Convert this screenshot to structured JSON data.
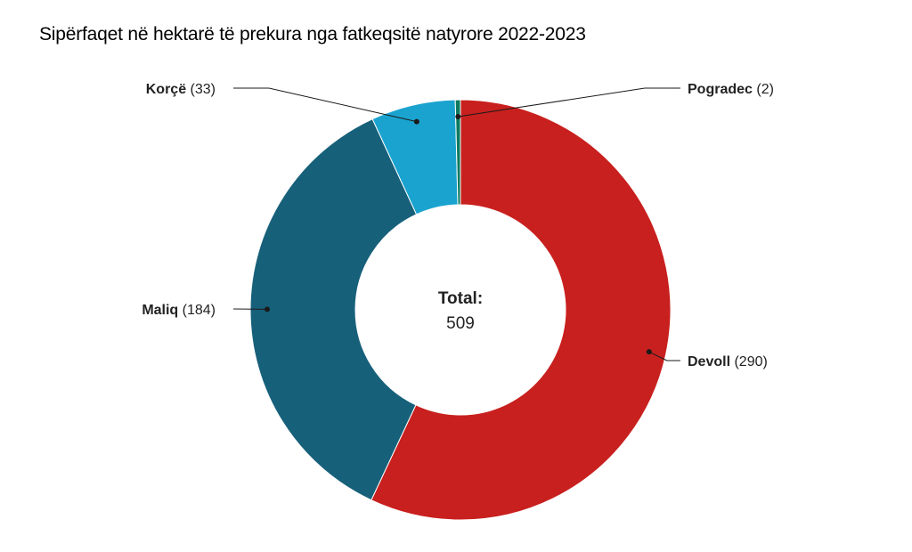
{
  "chart_data": {
    "type": "pie",
    "title": "Sipërfaqet në hektarë të prekura nga fatkeqsitë natyrore 2022-2023",
    "donut": true,
    "center_label": "Total:",
    "center_value": "509",
    "slices": [
      {
        "label": "Devoll",
        "value": 290,
        "display": "(290)",
        "color": "#c8201e"
      },
      {
        "label": "Maliq",
        "value": 184,
        "display": "(184)",
        "color": "#17607a"
      },
      {
        "label": "Korçë",
        "value": 33,
        "display": "(33)",
        "color": "#1ba3d0"
      },
      {
        "label": "Pogradec",
        "value": 2,
        "display": "(2)",
        "color": "#0d7a5f"
      }
    ]
  }
}
